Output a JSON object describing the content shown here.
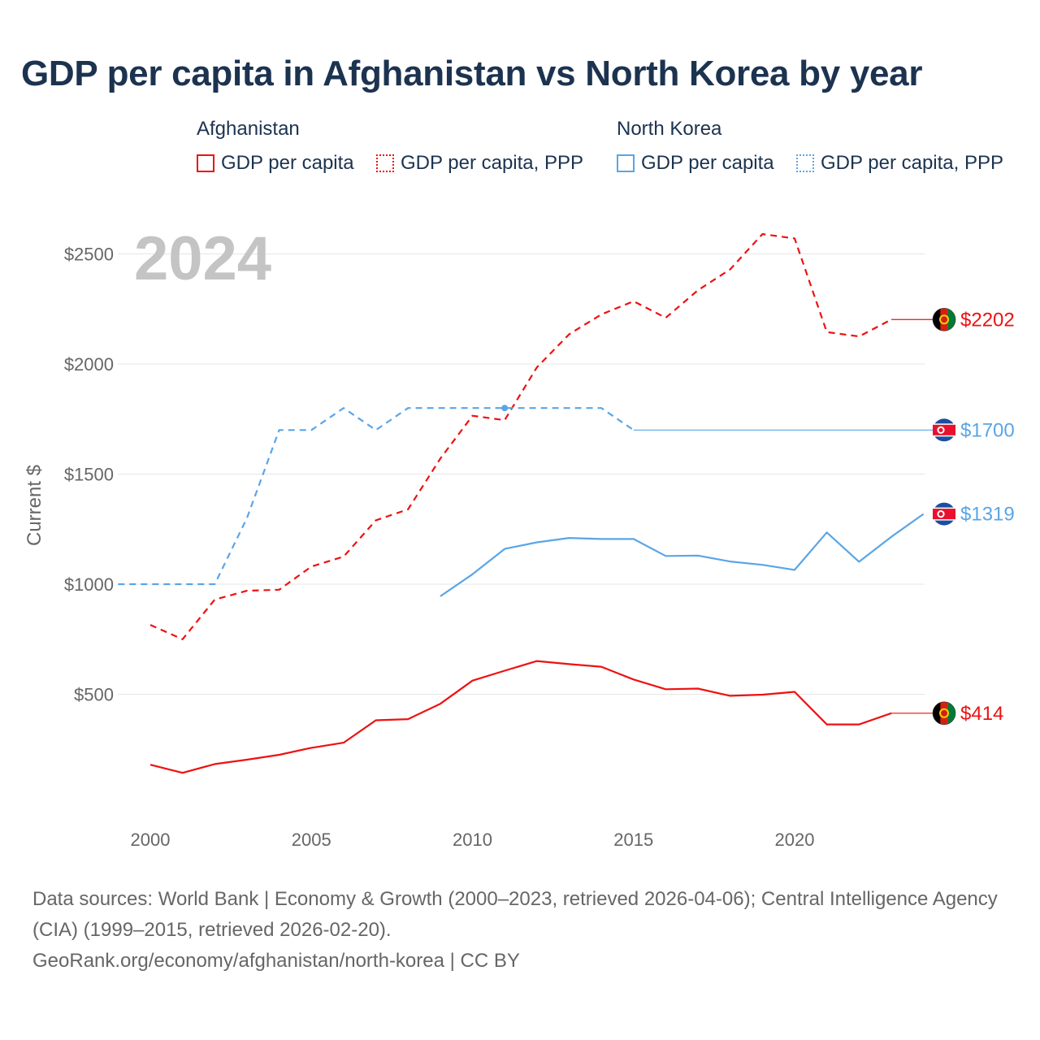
{
  "chart_data": {
    "type": "line",
    "title": "GDP per capita in Afghanistan vs North Korea by year",
    "ylabel": "Current $",
    "xlabel": "",
    "year_label": "2024",
    "xlim": [
      1999,
      2024
    ],
    "ylim": [
      0,
      2700
    ],
    "x_ticks": [
      2000,
      2005,
      2010,
      2015,
      2020
    ],
    "y_ticks": [
      500,
      1000,
      1500,
      2000,
      2500
    ],
    "y_tick_labels": [
      "$500",
      "$1000",
      "$1500",
      "$2000",
      "$2500"
    ],
    "legend": {
      "groups": [
        {
          "name": "Afghanistan",
          "items": [
            "GDP per capita",
            "GDP per capita, PPP"
          ],
          "color": "#ee1111"
        },
        {
          "name": "North Korea",
          "items": [
            "GDP per capita",
            "GDP per capita, PPP"
          ],
          "color": "#5aa5e6"
        }
      ]
    },
    "series": [
      {
        "name": "Afghanistan GDP per capita",
        "country": "Afghanistan",
        "color": "#ee1111",
        "style": "solid",
        "x": [
          2000,
          2001,
          2002,
          2003,
          2004,
          2005,
          2006,
          2007,
          2008,
          2009,
          2010,
          2011,
          2012,
          2013,
          2014,
          2015,
          2016,
          2017,
          2018,
          2019,
          2020,
          2021,
          2022,
          2023
        ],
        "values": [
          180,
          143,
          183,
          203,
          225,
          257,
          280,
          382,
          387,
          457,
          562,
          607,
          651,
          637,
          625,
          567,
          523,
          526,
          493,
          498,
          511,
          363,
          363,
          414
        ],
        "end_value": 414,
        "end_label": "$414"
      },
      {
        "name": "Afghanistan GDP per capita, PPP",
        "country": "Afghanistan",
        "color": "#ee1111",
        "style": "dashed",
        "x": [
          2000,
          2001,
          2002,
          2003,
          2004,
          2005,
          2006,
          2007,
          2008,
          2009,
          2010,
          2011,
          2012,
          2013,
          2014,
          2015,
          2016,
          2017,
          2018,
          2019,
          2020,
          2021,
          2022,
          2023
        ],
        "values": [
          815,
          750,
          930,
          970,
          975,
          1080,
          1125,
          1290,
          1340,
          1570,
          1765,
          1745,
          1985,
          2135,
          2225,
          2285,
          2210,
          2335,
          2430,
          2590,
          2570,
          2145,
          2125,
          2202
        ],
        "end_value": 2202,
        "end_label": "$2202"
      },
      {
        "name": "North Korea GDP per capita",
        "country": "North Korea",
        "color": "#5aa5e6",
        "style": "solid",
        "x": [
          2009,
          2010,
          2011,
          2012,
          2013,
          2014,
          2015,
          2016,
          2017,
          2018,
          2019,
          2020,
          2021,
          2022,
          2023,
          2024
        ],
        "values": [
          945,
          1045,
          1160,
          1190,
          1210,
          1205,
          1205,
          1128,
          1130,
          1103,
          1088,
          1065,
          1235,
          1102,
          1215,
          1319
        ],
        "end_value": 1319,
        "end_label": "$1319"
      },
      {
        "name": "North Korea GDP per capita, PPP",
        "country": "North Korea",
        "color": "#5aa5e6",
        "style": "dashed",
        "x": [
          1999,
          2000,
          2001,
          2002,
          2003,
          2004,
          2005,
          2006,
          2007,
          2008,
          2009,
          2010,
          2011,
          2012,
          2013,
          2014,
          2015
        ],
        "values": [
          1000,
          1000,
          1000,
          1000,
          1300,
          1700,
          1700,
          1800,
          1700,
          1800,
          1800,
          1800,
          1800,
          1800,
          1800,
          1800,
          1700
        ],
        "end_value": 1700,
        "end_label": "$1700"
      }
    ]
  },
  "footer": {
    "sources": "Data sources: World Bank | Economy & Growth (2000–2023, retrieved 2026-04-06); Central Intelligence Agency (CIA) (1999–2015, retrieved 2026-02-20).",
    "credit": "GeoRank.org/economy/afghanistan/north-korea | CC BY"
  },
  "colors": {
    "title": "#1c3350",
    "afghanistan": "#ee1111",
    "north_korea": "#5aa5e6",
    "grid": "#e6e6e6",
    "axis_text": "#666666",
    "year_watermark": "#c4c4c4"
  }
}
